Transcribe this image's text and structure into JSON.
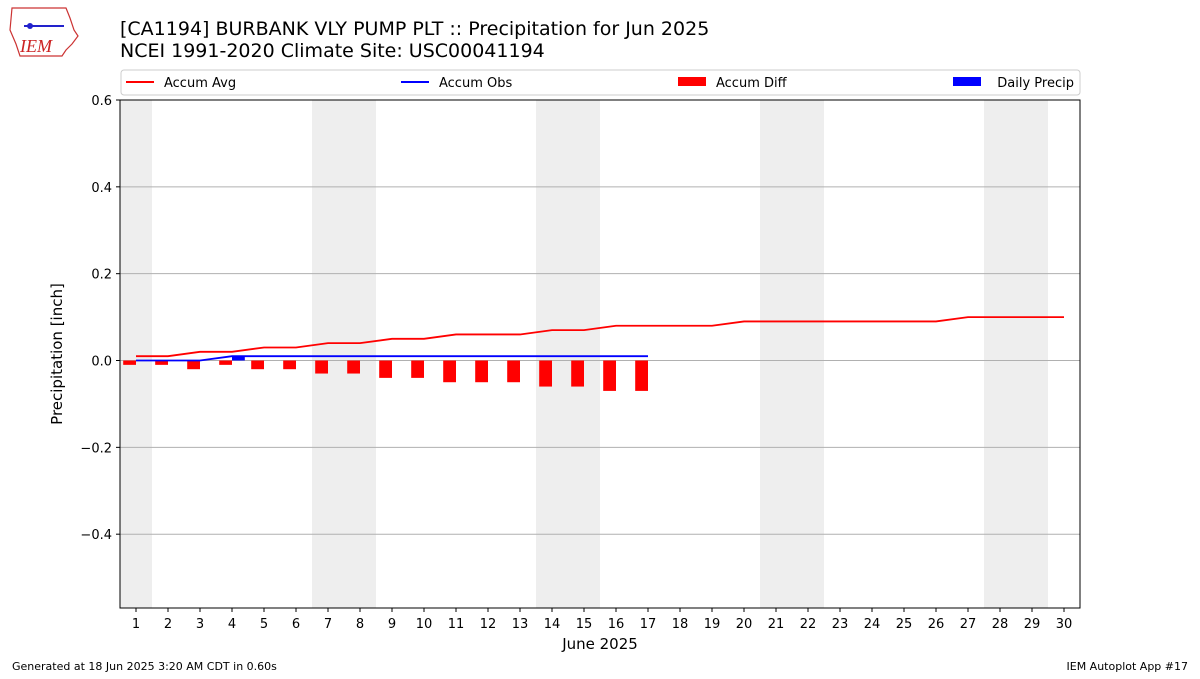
{
  "logo": "IEM",
  "footer_left": "Generated at 18 Jun 2025 3:20 AM CDT in 0.60s",
  "footer_right": "IEM Autoplot App #17",
  "chart_data": {
    "type": "line",
    "title": "[CA1194] BURBANK VLY PUMP PLT :: Precipitation for Jun 2025",
    "subtitle": "NCEI 1991-2020 Climate Site: USC00041194",
    "y_label": "Precipitation [inch]",
    "x_label": "June 2025",
    "x": [
      1,
      2,
      3,
      4,
      5,
      6,
      7,
      8,
      9,
      10,
      11,
      12,
      13,
      14,
      15,
      16,
      17,
      18,
      19,
      20,
      21,
      22,
      23,
      24,
      25,
      26,
      27,
      28,
      29,
      30
    ],
    "xlim": [
      0.5,
      30.5
    ],
    "xticks": [
      1,
      2,
      3,
      4,
      5,
      6,
      7,
      8,
      9,
      10,
      11,
      12,
      13,
      14,
      15,
      16,
      17,
      18,
      19,
      20,
      21,
      22,
      23,
      24,
      25,
      26,
      27,
      28,
      29,
      30
    ],
    "ylim": [
      -0.57,
      0.6
    ],
    "yticks": [
      {
        "value": -0.4,
        "label": "−0.4"
      },
      {
        "value": -0.2,
        "label": "−0.2"
      },
      {
        "value": 0,
        "label": "0.0"
      },
      0.2,
      0.4,
      0.6
    ],
    "grid": true,
    "shaded_days": [
      1,
      7,
      8,
      14,
      15,
      21,
      22,
      28,
      29
    ],
    "series": [
      {
        "name": "Accum Avg",
        "kind": "line",
        "color": "#ff0000",
        "values": [
          0.01,
          0.01,
          0.02,
          0.02,
          0.03,
          0.03,
          0.04,
          0.04,
          0.05,
          0.05,
          0.06,
          0.06,
          0.06,
          0.07,
          0.07,
          0.08,
          0.08,
          0.08,
          0.08,
          0.09,
          0.09,
          0.09,
          0.09,
          0.09,
          0.09,
          0.09,
          0.1,
          0.1,
          0.1,
          0.1
        ]
      },
      {
        "name": "Accum Obs",
        "kind": "line",
        "color": "#0000ff",
        "values": [
          0,
          0,
          0,
          0.01,
          0.01,
          0.01,
          0.01,
          0.01,
          0.01,
          0.01,
          0.01,
          0.01,
          0.01,
          0.01,
          0.01,
          0.01,
          0.01,
          null,
          null,
          null,
          null,
          null,
          null,
          null,
          null,
          null,
          null,
          null,
          null,
          null
        ]
      },
      {
        "name": "Accum Diff",
        "kind": "bar",
        "color": "#ff0000",
        "values": [
          -0.01,
          -0.01,
          -0.02,
          -0.01,
          -0.02,
          -0.02,
          -0.03,
          -0.03,
          -0.04,
          -0.04,
          -0.05,
          -0.05,
          -0.05,
          -0.06,
          -0.06,
          -0.07,
          -0.07,
          null,
          null,
          null,
          null,
          null,
          null,
          null,
          null,
          null,
          null,
          null,
          null,
          null
        ]
      },
      {
        "name": "Daily Precip",
        "kind": "bar",
        "color": "#0000ff",
        "values": [
          0,
          0,
          0,
          0.01,
          0,
          0,
          0,
          0,
          0,
          0,
          0,
          0,
          0,
          0,
          0,
          0,
          0,
          null,
          null,
          null,
          null,
          null,
          null,
          null,
          null,
          null,
          null,
          null,
          null,
          null
        ]
      }
    ]
  }
}
